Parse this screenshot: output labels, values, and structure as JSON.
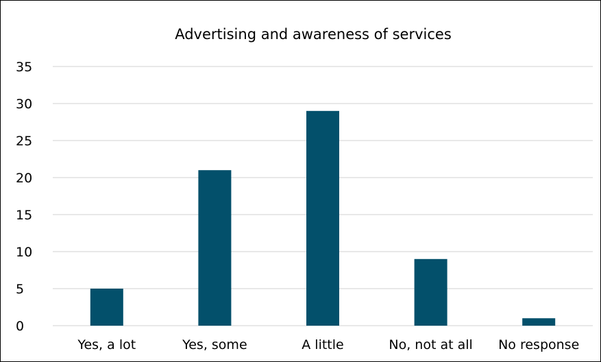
{
  "chart_data": {
    "type": "bar",
    "title": "Advertising and awareness of services",
    "categories": [
      "Yes, a lot",
      "Yes, some",
      "A little",
      "No, not at all",
      "No response"
    ],
    "values": [
      5,
      21,
      29,
      9,
      1
    ],
    "xlabel": "",
    "ylabel": "",
    "ylim": [
      0,
      35
    ],
    "yticks": [
      0,
      5,
      10,
      15,
      20,
      25,
      30,
      35
    ],
    "grid": true,
    "legend": "none",
    "bar_color": "#03506b",
    "grid_color": "#d9d9d9"
  }
}
